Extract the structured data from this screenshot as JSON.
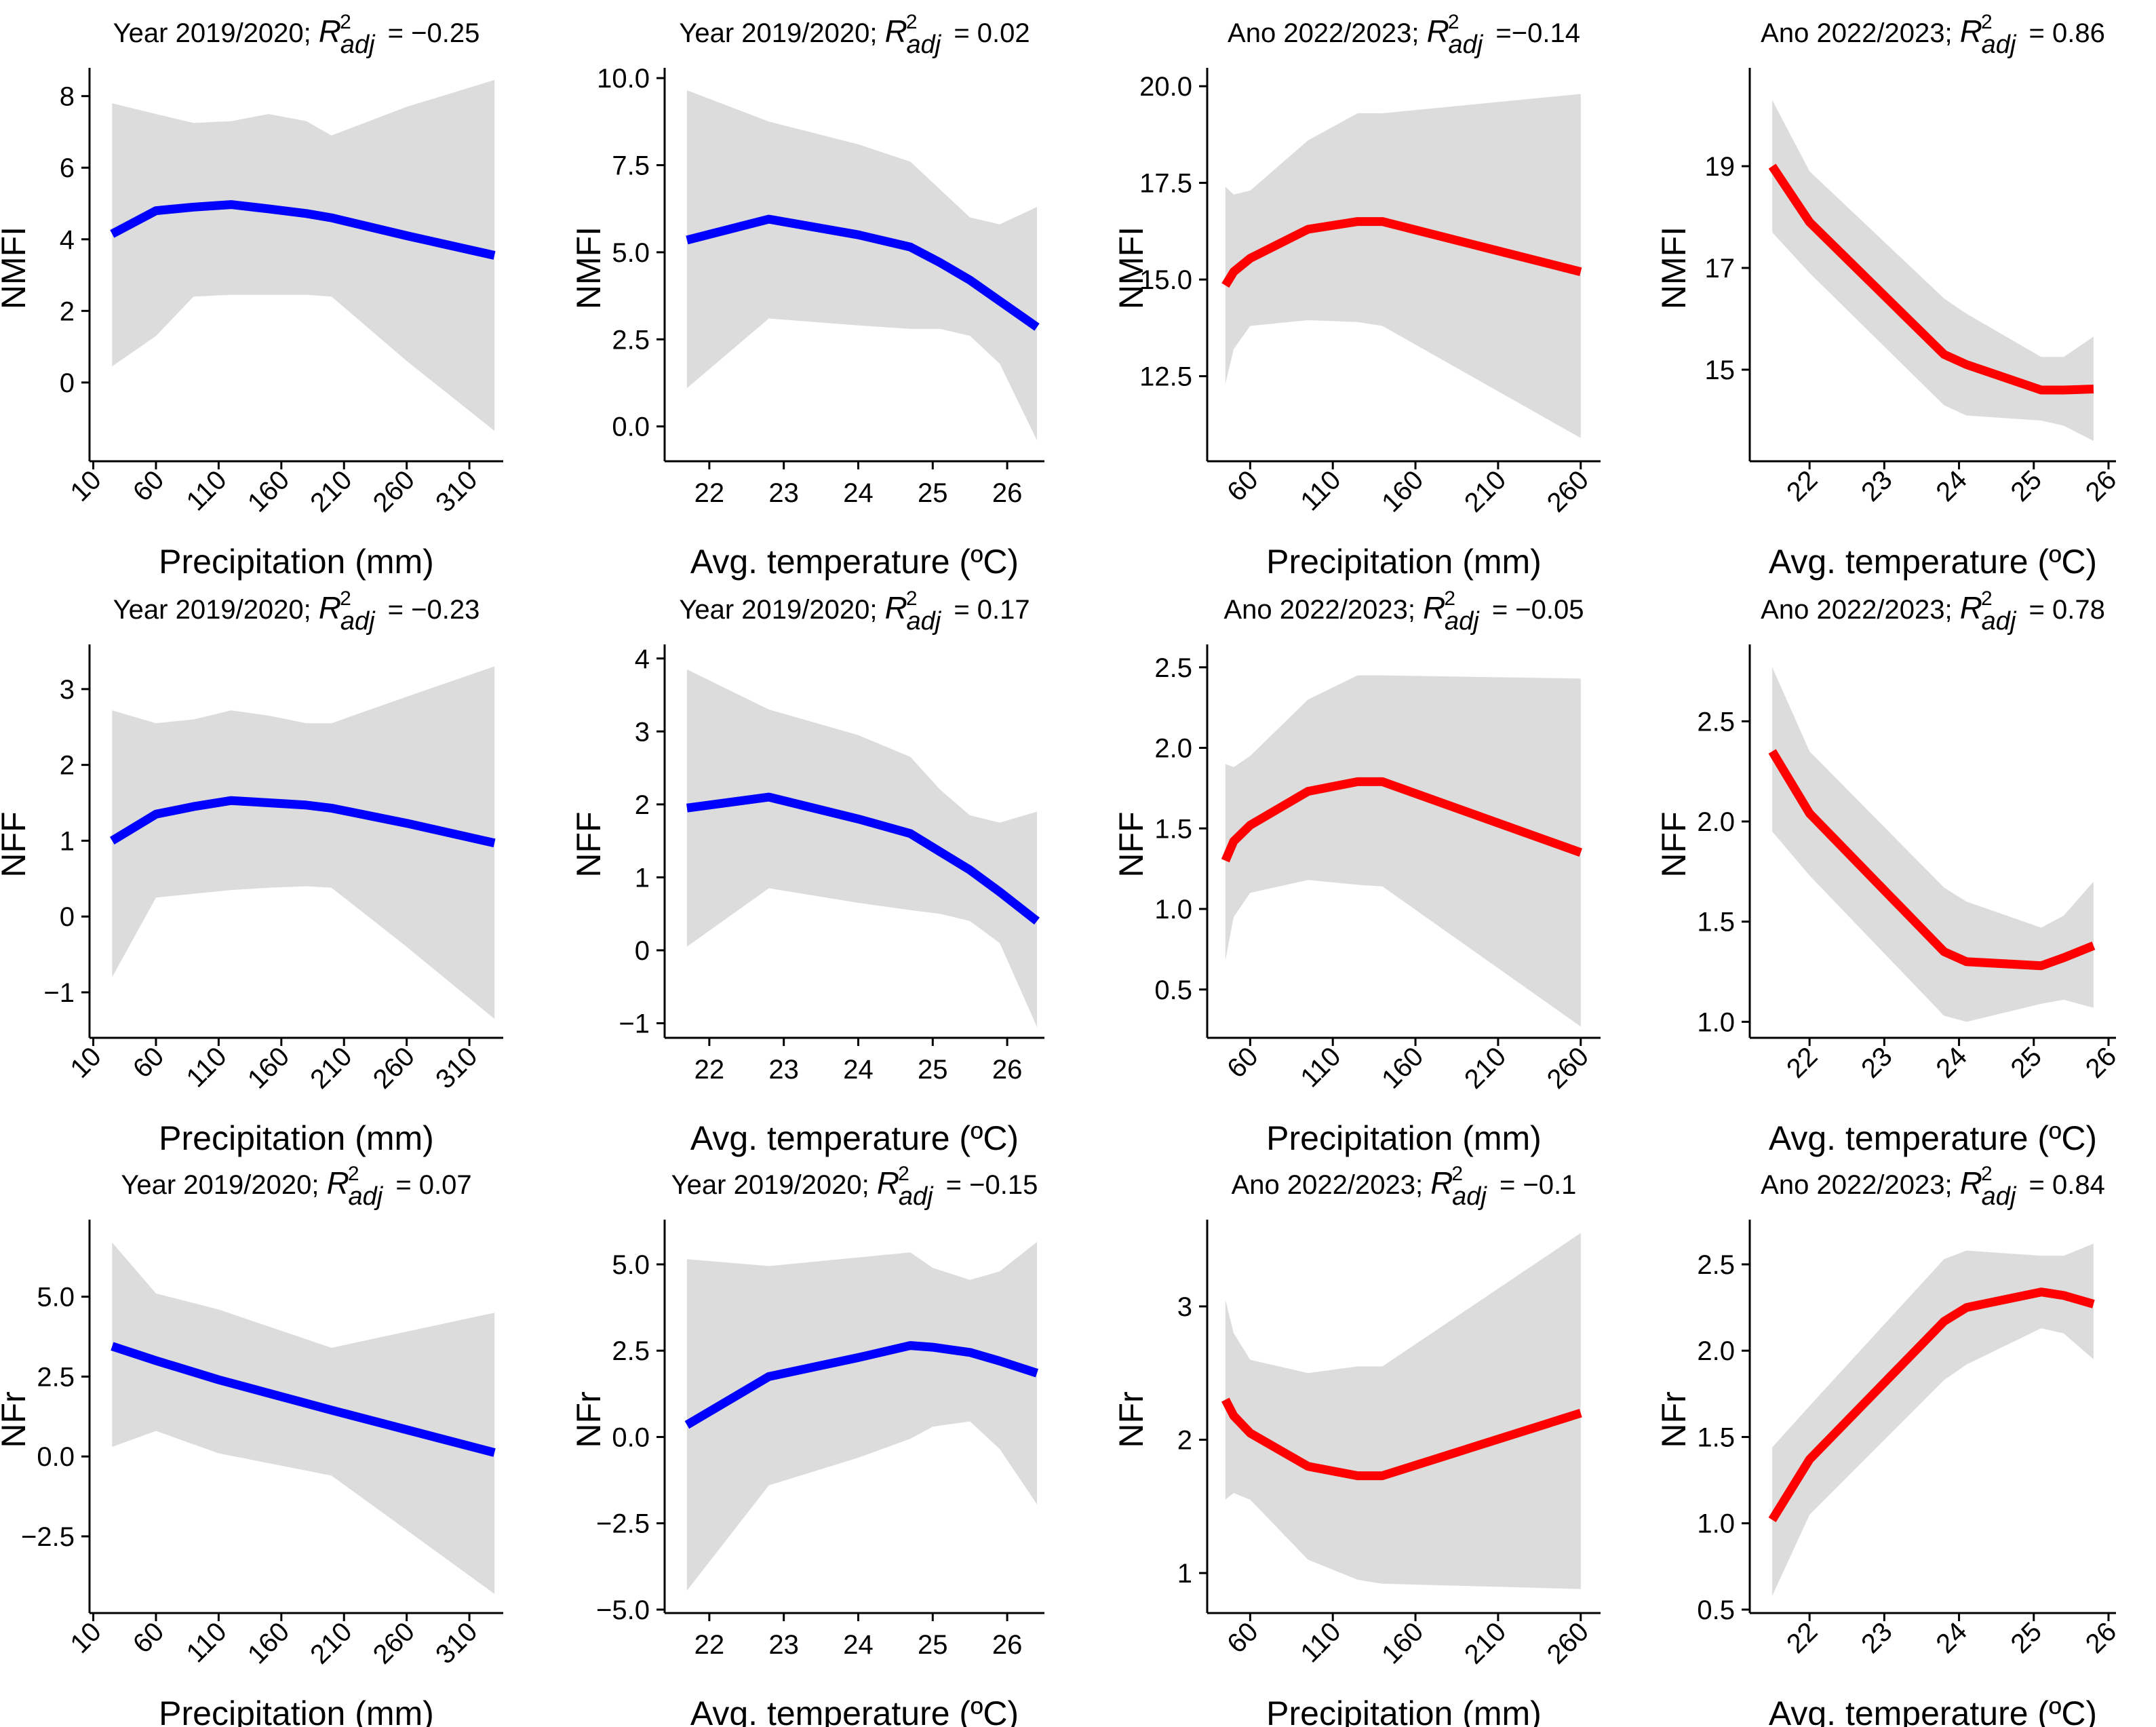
{
  "figure": {
    "colors": {
      "blue": "#0000ff",
      "red": "#ff0000",
      "band": "#dcdcdc",
      "axis": "#000000"
    }
  },
  "chart_data": [
    {
      "type": "line",
      "title": "Year 2019/2020;",
      "r2_value": "= −0.25",
      "color": "#0000ff",
      "xlabel": "Precipitation (mm)",
      "ylabel": "NMFI",
      "xlim": [
        7,
        337
      ],
      "ylim": [
        -2.2,
        8.6
      ],
      "xticks": [
        10,
        60,
        110,
        160,
        210,
        260,
        310
      ],
      "xtick_labels": [
        "10",
        "60",
        "110",
        "160",
        "210",
        "260",
        "310"
      ],
      "xtick_rotate": true,
      "yticks": [
        0,
        2,
        4,
        6,
        8
      ],
      "ytick_labels": [
        "0",
        "2",
        "4",
        "6",
        "8"
      ],
      "x": [
        25,
        60,
        90,
        120,
        150,
        180,
        200,
        260,
        330
      ],
      "y": [
        4.15,
        4.8,
        4.9,
        4.97,
        4.85,
        4.72,
        4.6,
        4.1,
        3.55
      ],
      "upper": [
        7.8,
        7.5,
        7.25,
        7.3,
        7.5,
        7.3,
        6.9,
        7.7,
        8.45
      ],
      "lower": [
        0.45,
        1.3,
        2.4,
        2.45,
        2.45,
        2.45,
        2.4,
        0.6,
        -1.35
      ]
    },
    {
      "type": "line",
      "title": "Year 2019/2020;",
      "r2_value": "= 0.02",
      "color": "#0000ff",
      "xlabel": "Avg. temperature (ºC)",
      "ylabel": "NMFI",
      "xlim": [
        21.4,
        26.5
      ],
      "ylim": [
        -1.0,
        10.1
      ],
      "xticks": [
        22,
        23,
        24,
        25,
        26
      ],
      "xtick_labels": [
        "22",
        "23",
        "24",
        "25",
        "26"
      ],
      "xtick_rotate": false,
      "yticks": [
        0.0,
        2.5,
        5.0,
        7.5,
        10.0
      ],
      "ytick_labels": [
        "0.0",
        "2.5",
        "5.0",
        "7.5",
        "10.0"
      ],
      "x": [
        21.7,
        22.8,
        24.0,
        24.7,
        25.1,
        25.5,
        25.9,
        26.4
      ],
      "y": [
        5.35,
        5.95,
        5.5,
        5.15,
        4.7,
        4.2,
        3.6,
        2.85
      ],
      "upper": [
        9.65,
        8.75,
        8.1,
        7.6,
        6.8,
        6.0,
        5.8,
        6.3
      ],
      "lower": [
        1.1,
        3.1,
        2.9,
        2.8,
        2.8,
        2.6,
        1.8,
        -0.4
      ]
    },
    {
      "type": "line",
      "title": "Ano 2022/2023;",
      "r2_value": "=−0.14",
      "color": "#ff0000",
      "xlabel": "Precipitation (mm)",
      "ylabel": "NMFI",
      "xlim": [
        34,
        272
      ],
      "ylim": [
        10.3,
        20.3
      ],
      "xticks": [
        60,
        110,
        160,
        210,
        260
      ],
      "xtick_labels": [
        "60",
        "110",
        "160",
        "210",
        "260"
      ],
      "xtick_rotate": true,
      "yticks": [
        12.5,
        15.0,
        17.5,
        20.0
      ],
      "ytick_labels": [
        "12.5",
        "15.0",
        "17.5",
        "20.0"
      ],
      "x": [
        45,
        50,
        60,
        95,
        125,
        140,
        260
      ],
      "y": [
        14.85,
        15.2,
        15.55,
        16.3,
        16.5,
        16.5,
        15.2
      ],
      "upper": [
        17.4,
        17.2,
        17.3,
        18.6,
        19.3,
        19.3,
        19.8
      ],
      "lower": [
        12.3,
        13.2,
        13.8,
        13.95,
        13.9,
        13.8,
        10.9
      ]
    },
    {
      "type": "line",
      "title": "Ano 2022/2023;",
      "r2_value": "= 0.86",
      "color": "#ff0000",
      "xlabel": "Avg. temperature (ºC)",
      "ylabel": "NMFI",
      "xlim": [
        21.2,
        26.1
      ],
      "ylim": [
        13.2,
        20.8
      ],
      "xticks": [
        22,
        23,
        24,
        25,
        26
      ],
      "xtick_labels": [
        "22",
        "23",
        "24",
        "25",
        "26"
      ],
      "xtick_rotate": true,
      "yticks": [
        15,
        17,
        19
      ],
      "ytick_labels": [
        "15",
        "17",
        "19"
      ],
      "x": [
        21.5,
        22.0,
        23.8,
        24.1,
        25.1,
        25.4,
        25.8
      ],
      "y": [
        19.0,
        17.9,
        15.3,
        15.1,
        14.6,
        14.6,
        14.62
      ],
      "upper": [
        20.3,
        18.9,
        16.4,
        16.1,
        15.25,
        15.25,
        15.65
      ],
      "lower": [
        17.7,
        16.9,
        14.3,
        14.1,
        14.0,
        13.9,
        13.6
      ]
    },
    {
      "type": "line",
      "title": "Year 2019/2020;",
      "r2_value": "= −0.23",
      "color": "#0000ff",
      "xlabel": "Precipitation (mm)",
      "ylabel": "NFF",
      "xlim": [
        7,
        337
      ],
      "ylim": [
        -1.6,
        3.5
      ],
      "xticks": [
        10,
        60,
        110,
        160,
        210,
        260,
        310
      ],
      "xtick_labels": [
        "10",
        "60",
        "110",
        "160",
        "210",
        "260",
        "310"
      ],
      "xtick_rotate": true,
      "yticks": [
        -1,
        0,
        1,
        2,
        3
      ],
      "ytick_labels": [
        "−1",
        "0",
        "1",
        "2",
        "3"
      ],
      "x": [
        25,
        60,
        90,
        120,
        150,
        180,
        200,
        260,
        330
      ],
      "y": [
        1.0,
        1.35,
        1.45,
        1.53,
        1.5,
        1.47,
        1.43,
        1.23,
        0.97
      ],
      "upper": [
        2.72,
        2.55,
        2.6,
        2.72,
        2.65,
        2.55,
        2.55,
        2.9,
        3.3
      ],
      "lower": [
        -0.8,
        0.25,
        0.3,
        0.35,
        0.38,
        0.4,
        0.38,
        -0.4,
        -1.35
      ]
    },
    {
      "type": "line",
      "title": "Year 2019/2020;",
      "r2_value": "= 0.17",
      "color": "#0000ff",
      "xlabel": "Avg. temperature (ºC)",
      "ylabel": "NFF",
      "xlim": [
        21.4,
        26.5
      ],
      "ylim": [
        -1.2,
        4.1
      ],
      "xticks": [
        22,
        23,
        24,
        25,
        26
      ],
      "xtick_labels": [
        "22",
        "23",
        "24",
        "25",
        "26"
      ],
      "xtick_rotate": false,
      "yticks": [
        -1,
        0,
        1,
        2,
        3,
        4
      ],
      "ytick_labels": [
        "−1",
        "0",
        "1",
        "2",
        "3",
        "4"
      ],
      "x": [
        21.7,
        22.8,
        24.0,
        24.7,
        25.1,
        25.5,
        25.9,
        26.4
      ],
      "y": [
        1.95,
        2.1,
        1.8,
        1.6,
        1.35,
        1.1,
        0.8,
        0.4
      ],
      "upper": [
        3.85,
        3.3,
        2.95,
        2.65,
        2.2,
        1.85,
        1.75,
        1.9
      ],
      "lower": [
        0.05,
        0.85,
        0.65,
        0.55,
        0.5,
        0.4,
        0.1,
        -1.05
      ]
    },
    {
      "type": "line",
      "title": "Ano 2022/2023;",
      "r2_value": "= −0.05",
      "color": "#ff0000",
      "xlabel": "Precipitation (mm)",
      "ylabel": "NFF",
      "xlim": [
        34,
        272
      ],
      "ylim": [
        0.2,
        2.6
      ],
      "xticks": [
        60,
        110,
        160,
        210,
        260
      ],
      "xtick_labels": [
        "60",
        "110",
        "160",
        "210",
        "260"
      ],
      "xtick_rotate": true,
      "yticks": [
        0.5,
        1.0,
        1.5,
        2.0,
        2.5
      ],
      "ytick_labels": [
        "0.5",
        "1.0",
        "1.5",
        "2.0",
        "2.5"
      ],
      "x": [
        45,
        50,
        60,
        95,
        125,
        140,
        260
      ],
      "y": [
        1.3,
        1.42,
        1.52,
        1.73,
        1.79,
        1.79,
        1.35
      ],
      "upper": [
        1.9,
        1.88,
        1.95,
        2.3,
        2.45,
        2.45,
        2.43
      ],
      "lower": [
        0.68,
        0.95,
        1.1,
        1.18,
        1.15,
        1.14,
        0.27
      ]
    },
    {
      "type": "line",
      "title": "Ano 2022/2023;",
      "r2_value": "= 0.78",
      "color": "#ff0000",
      "xlabel": "Avg. temperature (ºC)",
      "ylabel": "NFF",
      "xlim": [
        21.2,
        26.1
      ],
      "ylim": [
        0.92,
        2.85
      ],
      "xticks": [
        22,
        23,
        24,
        25,
        26
      ],
      "xtick_labels": [
        "22",
        "23",
        "24",
        "25",
        "26"
      ],
      "xtick_rotate": true,
      "yticks": [
        1.0,
        1.5,
        2.0,
        2.5
      ],
      "ytick_labels": [
        "1.0",
        "1.5",
        "2.0",
        "2.5"
      ],
      "x": [
        21.5,
        22.0,
        23.8,
        24.1,
        25.1,
        25.4,
        25.8
      ],
      "y": [
        2.35,
        2.04,
        1.35,
        1.3,
        1.28,
        1.32,
        1.38
      ],
      "upper": [
        2.77,
        2.35,
        1.67,
        1.6,
        1.47,
        1.53,
        1.7
      ],
      "lower": [
        1.95,
        1.73,
        1.03,
        1.0,
        1.09,
        1.11,
        1.07
      ]
    },
    {
      "type": "line",
      "title": "Year 2019/2020;",
      "r2_value": "= 0.07",
      "color": "#0000ff",
      "xlabel": "Precipitation (mm)",
      "ylabel": "NFr",
      "xlim": [
        7,
        337
      ],
      "ylim": [
        -4.9,
        7.2
      ],
      "xticks": [
        10,
        60,
        110,
        160,
        210,
        260,
        310
      ],
      "xtick_labels": [
        "10",
        "60",
        "110",
        "160",
        "210",
        "260",
        "310"
      ],
      "xtick_rotate": true,
      "yticks": [
        -2.5,
        0.0,
        2.5,
        5.0
      ],
      "ytick_labels": [
        "−2.5",
        "0.0",
        "2.5",
        "5.0"
      ],
      "yzero_label": "0.0",
      "x": [
        25,
        60,
        110,
        200,
        330
      ],
      "y": [
        3.45,
        3.0,
        2.4,
        1.45,
        0.12
      ],
      "upper": [
        6.7,
        5.1,
        4.6,
        3.4,
        4.5
      ],
      "lower": [
        0.3,
        0.8,
        0.1,
        -0.6,
        -4.3
      ]
    },
    {
      "type": "line",
      "title": "Year 2019/2020;",
      "r2_value": "= −0.15",
      "color": "#0000ff",
      "xlabel": "Avg. temperature (ºC)",
      "ylabel": "NFr",
      "xlim": [
        21.4,
        26.5
      ],
      "ylim": [
        -5.1,
        6.1
      ],
      "xticks": [
        22,
        23,
        24,
        25,
        26
      ],
      "xtick_labels": [
        "22",
        "23",
        "24",
        "25",
        "26"
      ],
      "xtick_rotate": false,
      "yticks": [
        -5.0,
        -2.5,
        0.0,
        2.5,
        5.0
      ],
      "ytick_labels": [
        "−5.0",
        "−2.5",
        "0.0",
        "2.5",
        "5.0"
      ],
      "x": [
        21.7,
        22.8,
        24.0,
        24.7,
        25.0,
        25.5,
        25.9,
        26.4
      ],
      "y": [
        0.35,
        1.75,
        2.3,
        2.65,
        2.6,
        2.45,
        2.2,
        1.85
      ],
      "upper": [
        5.15,
        4.95,
        5.2,
        5.35,
        4.9,
        4.55,
        4.8,
        5.65
      ],
      "lower": [
        -4.45,
        -1.4,
        -0.6,
        -0.05,
        0.3,
        0.45,
        -0.35,
        -1.95
      ]
    },
    {
      "type": "line",
      "title": "Ano 2022/2023;",
      "r2_value": "= −0.1",
      "color": "#ff0000",
      "xlabel": "Precipitation (mm)",
      "ylabel": "NFr",
      "xlim": [
        34,
        272
      ],
      "ylim": [
        0.7,
        3.6
      ],
      "xticks": [
        60,
        110,
        160,
        210,
        260
      ],
      "xtick_labels": [
        "60",
        "110",
        "160",
        "210",
        "260"
      ],
      "xtick_rotate": true,
      "yticks": [
        1,
        2,
        3
      ],
      "ytick_labels": [
        "1",
        "2",
        "3"
      ],
      "x": [
        45,
        50,
        60,
        95,
        125,
        140,
        260
      ],
      "y": [
        2.3,
        2.18,
        2.05,
        1.8,
        1.73,
        1.73,
        2.2
      ],
      "upper": [
        3.05,
        2.8,
        2.6,
        2.5,
        2.55,
        2.55,
        3.55
      ],
      "lower": [
        1.55,
        1.6,
        1.55,
        1.1,
        0.95,
        0.92,
        0.88
      ]
    },
    {
      "type": "line",
      "title": "Ano 2022/2023;",
      "r2_value": "= 0.84",
      "color": "#ff0000",
      "xlabel": "Avg. temperature (ºC)",
      "ylabel": "NFr",
      "xlim": [
        21.2,
        26.1
      ],
      "ylim": [
        0.48,
        2.72
      ],
      "xticks": [
        22,
        23,
        24,
        25,
        26
      ],
      "xtick_labels": [
        "22",
        "23",
        "24",
        "25",
        "26"
      ],
      "xtick_rotate": true,
      "yticks": [
        0.5,
        1.0,
        1.5,
        2.0,
        2.5
      ],
      "ytick_labels": [
        "0.5",
        "1.0",
        "1.5",
        "2.0",
        "2.5"
      ],
      "x": [
        21.5,
        22.0,
        23.8,
        24.1,
        25.1,
        25.4,
        25.8
      ],
      "y": [
        1.02,
        1.37,
        2.17,
        2.25,
        2.34,
        2.32,
        2.27
      ],
      "upper": [
        1.44,
        1.68,
        2.53,
        2.58,
        2.55,
        2.55,
        2.62
      ],
      "lower": [
        0.58,
        1.05,
        1.83,
        1.92,
        2.13,
        2.1,
        1.95
      ]
    }
  ]
}
